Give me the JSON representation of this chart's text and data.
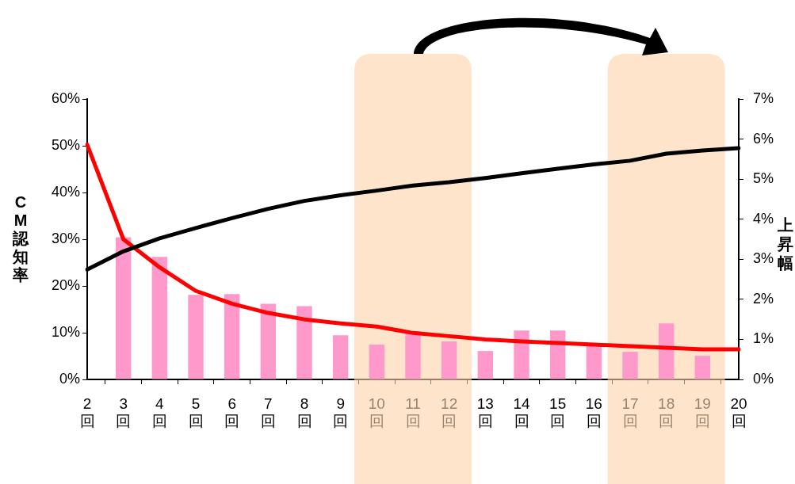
{
  "chart_data": {
    "type": "bar",
    "categories": [
      "2\n回",
      "3\n回",
      "4\n回",
      "5\n回",
      "6\n回",
      "7\n回",
      "8\n回",
      "9\n回",
      "10\n回",
      "11\n回",
      "12\n回",
      "13\n回",
      "14\n回",
      "15\n回",
      "16\n回",
      "17\n回",
      "18\n回",
      "19\n回",
      "20\n回"
    ],
    "series": [
      {
        "axis": "y2",
        "color": "#ff99cc",
        "values": [
          null,
          3.55,
          3.06,
          2.11,
          2.13,
          1.89,
          1.83,
          1.1,
          0.87,
          1.2,
          0.95,
          0.71,
          1.22,
          1.22,
          0.87,
          0.69,
          1.4,
          0.59,
          null
        ]
      },
      {
        "type": "line",
        "axis": "y",
        "color": "#000000",
        "values": [
          23.5,
          27.4,
          30.2,
          32.4,
          34.5,
          36.5,
          38.2,
          39.4,
          40.4,
          41.5,
          42.2,
          43.1,
          44.1,
          45.1,
          46.0,
          46.8,
          48.3,
          49.0,
          49.5
        ]
      },
      {
        "type": "line",
        "axis": "y2",
        "color": "#ff0000",
        "values": [
          5.86,
          3.5,
          2.8,
          2.21,
          1.89,
          1.66,
          1.5,
          1.4,
          1.32,
          1.16,
          1.08,
          1.0,
          0.95,
          0.91,
          0.87,
          0.83,
          0.79,
          0.75,
          0.75
        ]
      }
    ],
    "ylabel": "CM認知率",
    "y2label": "上昇幅",
    "ylim": [
      0,
      60
    ],
    "yticks": [
      {
        "value": 0,
        "label": "0%"
      },
      {
        "value": 10,
        "label": "10%"
      },
      {
        "value": 20,
        "label": "20%"
      },
      {
        "value": 30,
        "label": "30%"
      },
      {
        "value": 40,
        "label": "40%"
      },
      {
        "value": 50,
        "label": "50%"
      },
      {
        "value": 60,
        "label": "60%"
      }
    ],
    "y2lim": [
      0,
      7
    ],
    "y2ticks": [
      {
        "value": 0,
        "label": "0%"
      },
      {
        "value": 1,
        "label": "1%"
      },
      {
        "value": 2,
        "label": "2%"
      },
      {
        "value": 3,
        "label": "3%"
      },
      {
        "value": 4,
        "label": "4%"
      },
      {
        "value": 5,
        "label": "5%"
      },
      {
        "value": 6,
        "label": "6%"
      },
      {
        "value": 7,
        "label": "7%"
      }
    ],
    "bands": [
      {
        "axis": "x",
        "from": "10\n回",
        "to": "12\n回",
        "color": "#fdd2a8"
      },
      {
        "axis": "x",
        "from": "17\n回",
        "to": "19\n回",
        "color": "#fdd2a8"
      }
    ],
    "grid": false,
    "legend": false,
    "marker": "none",
    "line_style": "solid"
  }
}
